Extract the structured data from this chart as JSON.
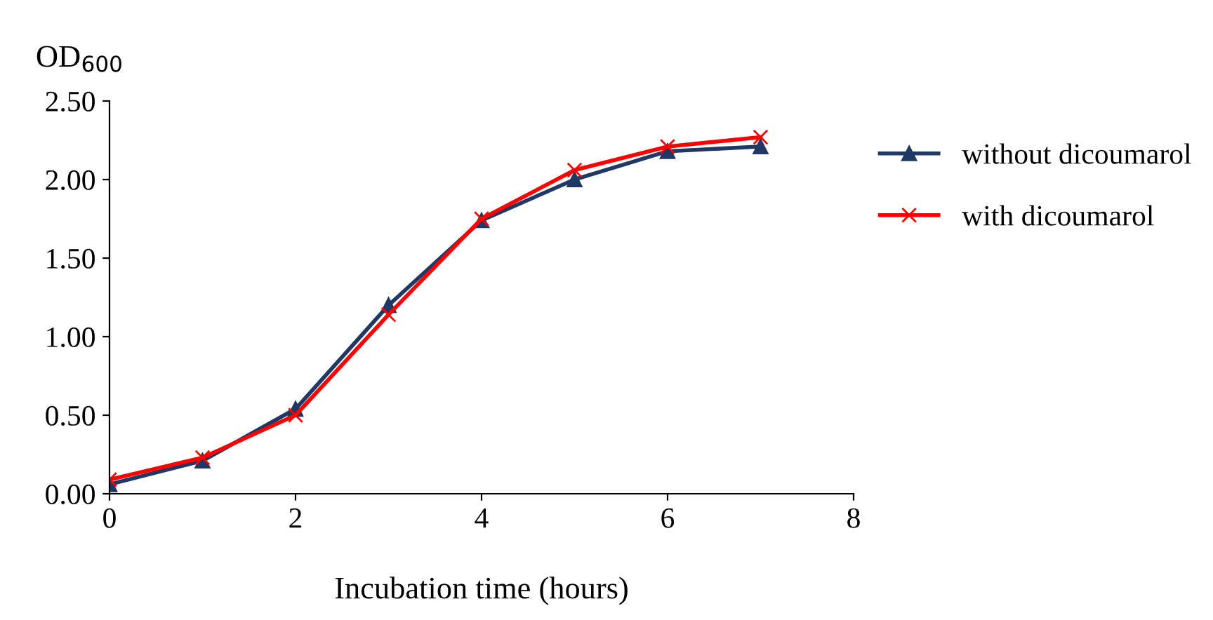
{
  "chart_data": {
    "type": "line",
    "ylabel": "OD$_{600}$",
    "xlabel": "Incubation time (hours)",
    "x": [
      0,
      1,
      2,
      3,
      4,
      5,
      6,
      7
    ],
    "series": [
      {
        "name": "without dicoumarol",
        "color": "#1f3864",
        "marker": "triangle",
        "values": [
          0.06,
          0.21,
          0.54,
          1.2,
          1.74,
          2.0,
          2.18,
          2.21
        ]
      },
      {
        "name": "with dicoumarol",
        "color": "#ff0000",
        "marker": "cross",
        "values": [
          0.09,
          0.23,
          0.5,
          1.14,
          1.75,
          2.06,
          2.21,
          2.27
        ]
      }
    ],
    "xlim": [
      0,
      8
    ],
    "xticks": [
      0,
      2,
      4,
      6,
      8
    ],
    "ylim": [
      0,
      2.5
    ],
    "yticks": [
      {
        "value": 0,
        "label": "0.00"
      },
      {
        "value": 0.5,
        "label": "0.50"
      },
      {
        "value": 1,
        "label": "1.00"
      },
      {
        "value": 1.5,
        "label": "1.50"
      },
      {
        "value": 2,
        "label": "2.00"
      },
      {
        "value": 2.5,
        "label": "2.50"
      }
    ],
    "legend": "right",
    "grid": false
  }
}
